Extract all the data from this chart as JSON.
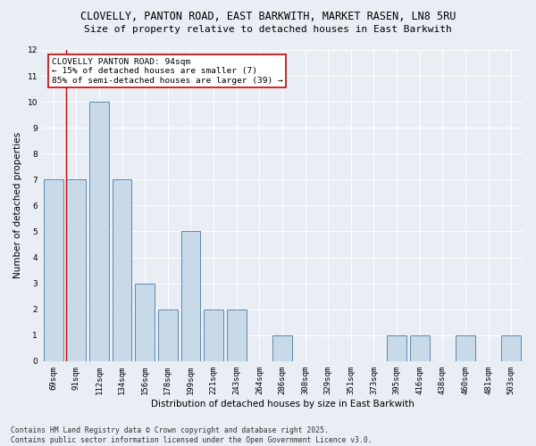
{
  "title_line1": "CLOVELLY, PANTON ROAD, EAST BARKWITH, MARKET RASEN, LN8 5RU",
  "title_line2": "Size of property relative to detached houses in East Barkwith",
  "xlabel": "Distribution of detached houses by size in East Barkwith",
  "ylabel": "Number of detached properties",
  "categories": [
    "69sqm",
    "91sqm",
    "112sqm",
    "134sqm",
    "156sqm",
    "178sqm",
    "199sqm",
    "221sqm",
    "243sqm",
    "264sqm",
    "286sqm",
    "308sqm",
    "329sqm",
    "351sqm",
    "373sqm",
    "395sqm",
    "416sqm",
    "438sqm",
    "460sqm",
    "481sqm",
    "503sqm"
  ],
  "values": [
    7,
    7,
    10,
    7,
    3,
    2,
    5,
    2,
    2,
    0,
    1,
    0,
    0,
    0,
    0,
    1,
    1,
    0,
    1,
    0,
    1
  ],
  "bar_color": "#c8d9e8",
  "bar_edgecolor": "#5a8ab0",
  "background_color": "#e8eef4",
  "grid_color": "#ffffff",
  "red_line_index": 1,
  "annotation_title": "CLOVELLY PANTON ROAD: 94sqm",
  "annotation_line2": "← 15% of detached houses are smaller (7)",
  "annotation_line3": "85% of semi-detached houses are larger (39) →",
  "annotation_box_color": "#ffffff",
  "annotation_box_edgecolor": "#cc0000",
  "red_line_color": "#cc0000",
  "ylim": [
    0,
    12
  ],
  "yticks": [
    0,
    1,
    2,
    3,
    4,
    5,
    6,
    7,
    8,
    9,
    10,
    11,
    12
  ],
  "footer": "Contains HM Land Registry data © Crown copyright and database right 2025.\nContains public sector information licensed under the Open Government Licence v3.0.",
  "title_fontsize": 8.5,
  "subtitle_fontsize": 8,
  "axis_label_fontsize": 7.5,
  "tick_fontsize": 6.5,
  "annotation_fontsize": 6.8,
  "footer_fontsize": 5.8
}
